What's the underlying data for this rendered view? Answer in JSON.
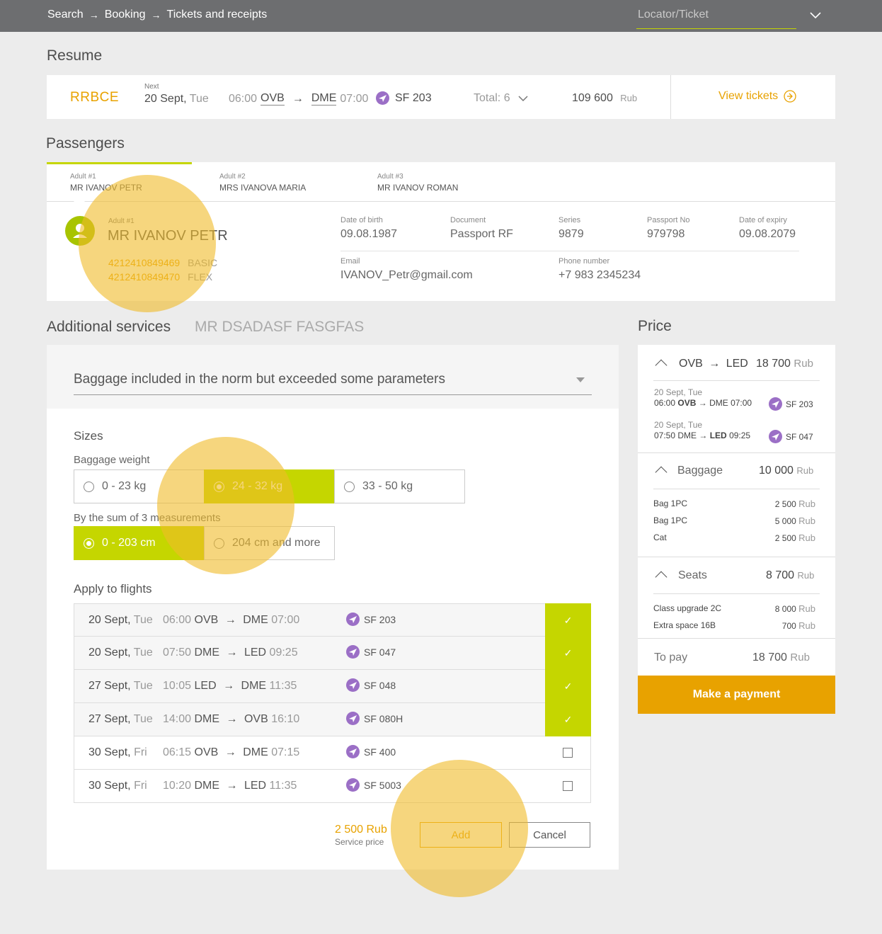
{
  "breadcrumbs": [
    "Search",
    "Booking",
    "Tickets and receipts"
  ],
  "locator_placeholder": "Locator/Ticket",
  "resume": {
    "title": "Resume",
    "pnr": "RRBCE",
    "next_label": "Next",
    "date": "20 Sept,",
    "day": "Tue",
    "dep_time": "06:00",
    "from": "OVB",
    "to": "DME",
    "arr_time": "07:00",
    "flight": "SF 203",
    "total_label": "Total: 6",
    "amount": "109 600",
    "currency": "Rub",
    "view_tickets": "View tickets"
  },
  "passengers": {
    "title": "Passengers",
    "tabs": [
      {
        "label": "Adult #1",
        "name": "MR IVANOV PETR"
      },
      {
        "label": "Adult #2",
        "name": "MRS IVANOVA MARIA"
      },
      {
        "label": "Adult #3",
        "name": "MR IVANOV ROMAN"
      }
    ],
    "detail": {
      "label": "Adult #1",
      "name": "MR IVANOV PETR",
      "tickets": [
        {
          "number": "4212410849469",
          "fare": "BASIC"
        },
        {
          "number": "4212410849470",
          "fare": "FLEX"
        }
      ],
      "dob_label": "Date of birth",
      "dob": "09.08.1987",
      "doc_label": "Document",
      "doc": "Passport RF",
      "series_label": "Series",
      "series": "9879",
      "passport_label": "Passport No",
      "passport": "979798",
      "expiry_label": "Date of expiry",
      "expiry": "09.08.2079",
      "email_label": "Email",
      "email": "IVANOV_Petr@gmail.com",
      "phone_label": "Phone number",
      "phone": "+7 983 2345234"
    }
  },
  "services": {
    "title": "Additional services",
    "subtitle": "MR DSADASF FASGFAS",
    "dropdown_value": "Baggage included in the norm but exceeded some parameters",
    "sizes_title": "Sizes",
    "weight_label": "Baggage weight",
    "weight_options": [
      "0 - 23 kg",
      "24 - 32 kg",
      "33 - 50 kg"
    ],
    "weight_selected": 1,
    "measure_label": "By the sum of 3 measurements",
    "measure_options": [
      "0 - 203 cm",
      "204 cm and more"
    ],
    "measure_selected": 0,
    "apply_title": "Apply to flights",
    "flights": [
      {
        "date": "20 Sept,",
        "day": "Tue",
        "dep": "06:00",
        "from": "OVB",
        "to": "DME",
        "arr": "07:00",
        "flight": "SF 203",
        "checked": true
      },
      {
        "date": "20 Sept,",
        "day": "Tue",
        "dep": "07:50",
        "from": "DME",
        "to": "LED",
        "arr": "09:25",
        "flight": "SF 047",
        "checked": true
      },
      {
        "date": "27 Sept,",
        "day": "Tue",
        "dep": "10:05",
        "from": "LED",
        "to": "DME",
        "arr": "11:35",
        "flight": "SF 048",
        "checked": true
      },
      {
        "date": "27 Sept,",
        "day": "Tue",
        "dep": "14:00",
        "from": "DME",
        "to": "OVB",
        "arr": "16:10",
        "flight": "SF 080H",
        "checked": true
      },
      {
        "date": "30 Sept,",
        "day": "Fri",
        "dep": "06:15",
        "from": "OVB",
        "to": "DME",
        "arr": "07:15",
        "flight": "SF 400",
        "checked": false
      },
      {
        "date": "30 Sept,",
        "day": "Fri",
        "dep": "10:20",
        "from": "DME",
        "to": "LED",
        "arr": "11:35",
        "flight": "SF 5003",
        "checked": false
      }
    ],
    "service_price": "2 500 Rub",
    "service_price_label": "Service price",
    "add_label": "Add",
    "cancel_label": "Cancel"
  },
  "price": {
    "title": "Price",
    "route_from": "OVB",
    "route_to": "LED",
    "route_amount": "18 700",
    "currency": "Rub",
    "segments": [
      {
        "date": "20 Sept, Tue",
        "dep": "06:00",
        "from": "OVB",
        "to": "DME",
        "arr": "07:00",
        "flight": "SF 203"
      },
      {
        "date": "20 Sept, Tue",
        "dep": "07:50",
        "from": "DME",
        "to": "LED",
        "arr": "09:25",
        "flight": "SF 047"
      }
    ],
    "baggage_label": "Baggage",
    "baggage_total": "10 000",
    "baggage_items": [
      {
        "name": "Bag 1PC",
        "amount": "2 500"
      },
      {
        "name": "Bag 1PC",
        "amount": "5 000"
      },
      {
        "name": "Cat",
        "amount": "2 500"
      }
    ],
    "seats_label": "Seats",
    "seats_total": "8 700",
    "seat_items": [
      {
        "name": "Class upgrade 2C",
        "amount": "8 000"
      },
      {
        "name": "Extra space 16B",
        "amount": "700"
      }
    ],
    "to_pay_label": "To pay",
    "to_pay": "18 700",
    "pay_button": "Make a payment"
  },
  "colors": {
    "accent_green": "#c5d600",
    "accent_orange": "#e8a200",
    "plane_purple": "#9b6fc6",
    "topbar": "#6d6e70"
  }
}
